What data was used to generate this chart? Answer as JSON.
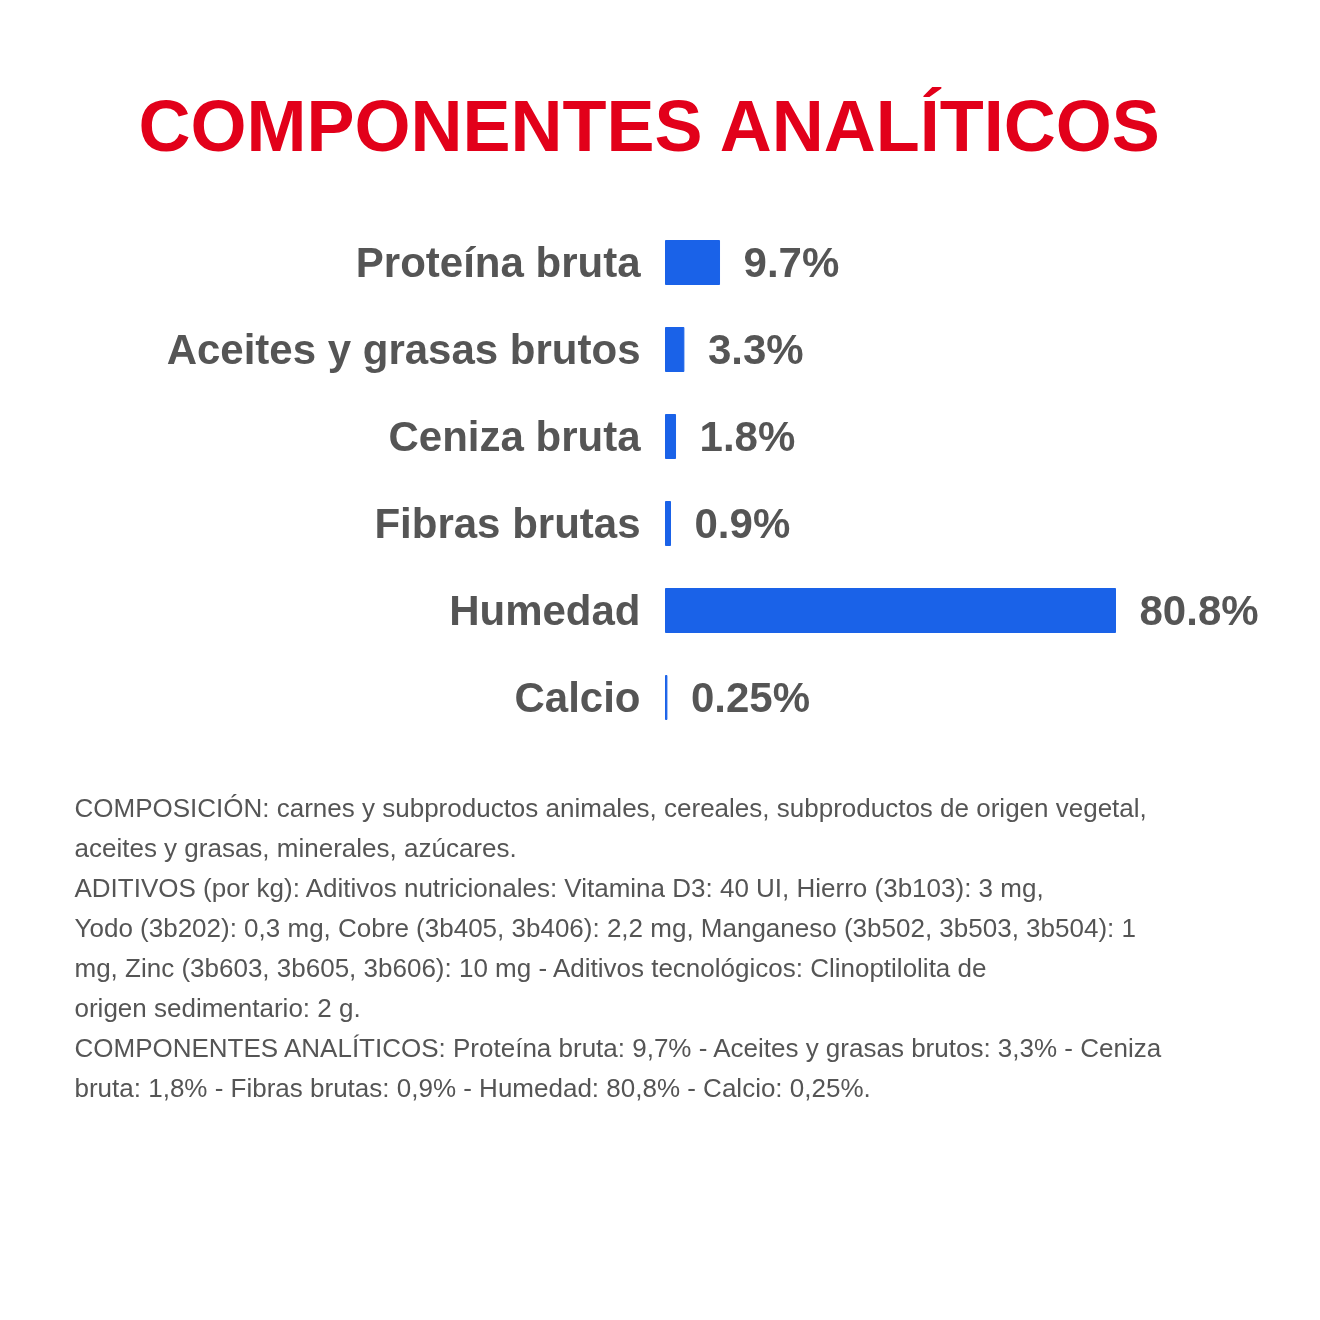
{
  "chart_data": {
    "type": "bar",
    "orientation": "horizontal",
    "title": "COMPONENTES ANALÍTICOS",
    "categories": [
      "Proteína bruta",
      "Aceites y grasas brutos",
      "Ceniza bruta",
      "Fibras brutas",
      "Humedad",
      "Calcio"
    ],
    "values": [
      9.7,
      3.3,
      1.8,
      0.9,
      80.8,
      0.25
    ],
    "value_labels": [
      "9.7%",
      "3.3%",
      "1.8%",
      "0.9%",
      "80.8%",
      "0.25%"
    ],
    "color": "#1a62e8",
    "annotations": [
      "COMPOSICIÓN: carnes y subproductos animales, cereales, subproductos de origen vegetal, aceites y grasas, minerales, azúcares.",
      "ADITIVOS (por kg): Aditivos nutricionales: Vitamina D3: 40 UI, Hierro (3b103): 3 mg, Yodo (3b202): 0,3 mg, Cobre (3b405, 3b406): 2,2 mg, Manganeso (3b502, 3b503, 3b504): 1 mg, Zinc (3b603, 3b605, 3b606): 10 mg - Aditivos tecnológicos: Clinoptilolita de origen sedimentario: 2 g.",
      "COMPONENTES ANALÍTICOS: Proteína bruta: 9,7% - Aceites y grasas brutos: 3,3% - Ceniza bruta: 1,8% - Fibras brutas: 0,9% - Humedad: 80,8% - Calcio: 0,25%."
    ]
  }
}
